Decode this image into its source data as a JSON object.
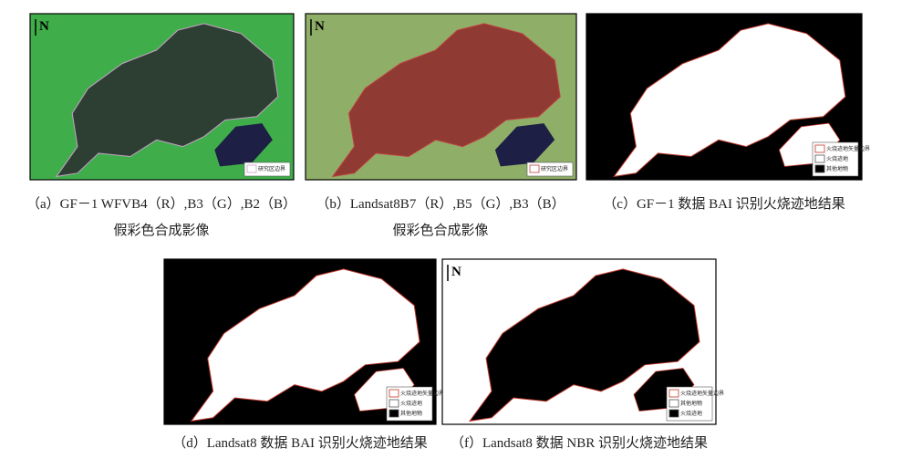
{
  "panels": [
    {
      "north": "N",
      "legend": [
        "研究区边界"
      ],
      "caption": [
        "（a）GF－1 WFVB4（R）,B3（G）,B2（B）",
        "假彩色合成影像"
      ]
    },
    {
      "north": "N",
      "legend": [
        "研究区边界"
      ],
      "caption": [
        "（b）Landsat8B7（R）,B5（G）,B3（B）",
        "假彩色合成影像"
      ]
    },
    {
      "north": "N",
      "legend": [
        "火烧迹地矢量边界",
        "火烧迹地",
        "其他地物"
      ],
      "caption": [
        "（c）GF－1 数据 BAI 识别火烧迹地结果"
      ]
    },
    {
      "north": "N",
      "legend": [
        "火烧迹地矢量边界",
        "火烧迹地",
        "其他地物"
      ],
      "caption": [
        "（d）Landsat8 数据 BAI 识别火烧迹地结果"
      ]
    },
    {
      "north": "N",
      "legend": [
        "火烧迹地矢量边界",
        "其他地物",
        "火烧迹地"
      ],
      "caption": [
        "（f）Landsat8 数据 NBR 识别火烧迹地结果"
      ]
    }
  ]
}
